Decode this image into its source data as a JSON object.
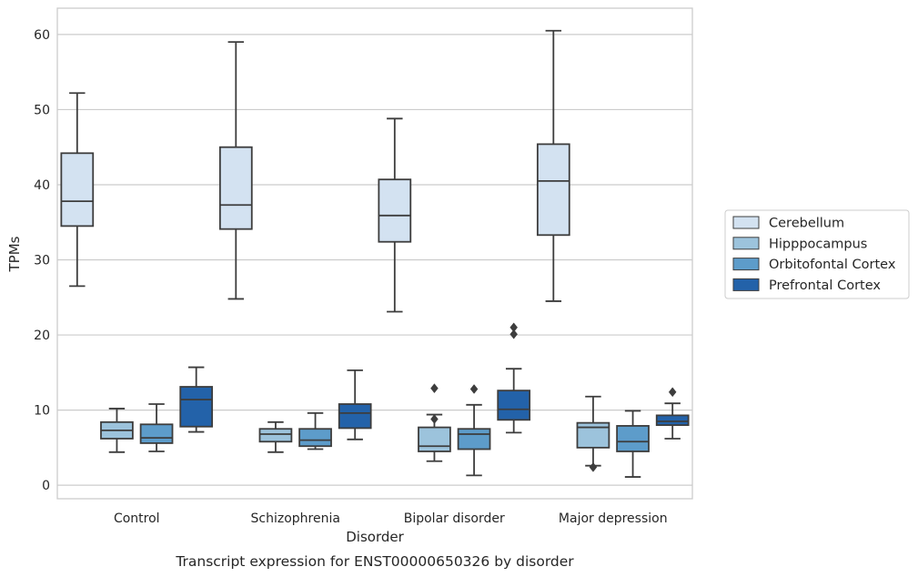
{
  "chart_data": {
    "type": "box",
    "caption": "Transcript expression for ENST00000650326 by disorder",
    "xlabel": "Disorder",
    "ylabel": "TPMs",
    "ylim": [
      -1.8,
      63.5
    ],
    "yticks": [
      0,
      10,
      20,
      30,
      40,
      50,
      60
    ],
    "grid": true,
    "legend_position": "right",
    "categories": [
      "Control",
      "Schizophrenia",
      "Bipolar disorder",
      "Major depression"
    ],
    "series": [
      {
        "name": "Cerebellum",
        "color": "#d3e2f1",
        "boxes": [
          {
            "whisker_low": 26.5,
            "q1": 34.5,
            "median": 37.8,
            "q3": 44.2,
            "whisker_high": 52.2,
            "outliers": []
          },
          {
            "whisker_low": 24.8,
            "q1": 34.1,
            "median": 37.3,
            "q3": 45.0,
            "whisker_high": 59.0,
            "outliers": []
          },
          {
            "whisker_low": 23.1,
            "q1": 32.4,
            "median": 35.9,
            "q3": 40.7,
            "whisker_high": 48.8,
            "outliers": []
          },
          {
            "whisker_low": 24.5,
            "q1": 33.3,
            "median": 40.5,
            "q3": 45.4,
            "whisker_high": 60.5,
            "outliers": []
          }
        ]
      },
      {
        "name": "Hipppocampus",
        "color": "#9cc3dc",
        "boxes": [
          {
            "whisker_low": 4.4,
            "q1": 6.2,
            "median": 7.3,
            "q3": 8.4,
            "whisker_high": 10.2,
            "outliers": []
          },
          {
            "whisker_low": 4.4,
            "q1": 5.8,
            "median": 6.8,
            "q3": 7.5,
            "whisker_high": 8.4,
            "outliers": []
          },
          {
            "whisker_low": 3.2,
            "q1": 4.5,
            "median": 5.2,
            "q3": 7.7,
            "whisker_high": 9.4,
            "outliers": [
              8.8,
              12.9
            ]
          },
          {
            "whisker_low": 2.6,
            "q1": 5.0,
            "median": 7.7,
            "q3": 8.3,
            "whisker_high": 11.8,
            "outliers": [
              2.4
            ]
          }
        ]
      },
      {
        "name": "Orbitofontal Cortex",
        "color": "#5d9cca",
        "boxes": [
          {
            "whisker_low": 4.5,
            "q1": 5.6,
            "median": 6.3,
            "q3": 8.1,
            "whisker_high": 10.8,
            "outliers": []
          },
          {
            "whisker_low": 4.8,
            "q1": 5.2,
            "median": 6.0,
            "q3": 7.5,
            "whisker_high": 9.6,
            "outliers": []
          },
          {
            "whisker_low": 1.3,
            "q1": 4.8,
            "median": 6.8,
            "q3": 7.5,
            "whisker_high": 10.7,
            "outliers": [
              12.8
            ]
          },
          {
            "whisker_low": 1.1,
            "q1": 4.5,
            "median": 5.8,
            "q3": 7.9,
            "whisker_high": 9.9,
            "outliers": []
          }
        ]
      },
      {
        "name": "Prefrontal Cortex",
        "color": "#2362a9",
        "boxes": [
          {
            "whisker_low": 7.1,
            "q1": 7.8,
            "median": 11.4,
            "q3": 13.1,
            "whisker_high": 15.7,
            "outliers": []
          },
          {
            "whisker_low": 6.1,
            "q1": 7.6,
            "median": 9.6,
            "q3": 10.8,
            "whisker_high": 15.3,
            "outliers": []
          },
          {
            "whisker_low": 7.0,
            "q1": 8.7,
            "median": 10.1,
            "q3": 12.6,
            "whisker_high": 15.5,
            "outliers": [
              20.1,
              21.0
            ]
          },
          {
            "whisker_low": 6.2,
            "q1": 8.0,
            "median": 8.5,
            "q3": 9.3,
            "whisker_high": 10.9,
            "outliers": [
              12.4
            ]
          }
        ]
      }
    ]
  }
}
